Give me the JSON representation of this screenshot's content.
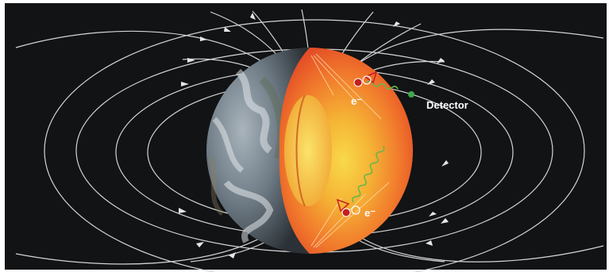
{
  "labels": {
    "detector": "Detector",
    "electron_top": "e⁻",
    "electron_bottom": "e⁻"
  },
  "colors": {
    "background": "#111315",
    "field_lines": "#d8d8d8",
    "earth_core_outer": "#ef5a2a",
    "earth_core_inner": "#f7b437",
    "detector_dot": "#3fa84a",
    "wave": "#67b84a",
    "electron": "#c51f1f"
  }
}
